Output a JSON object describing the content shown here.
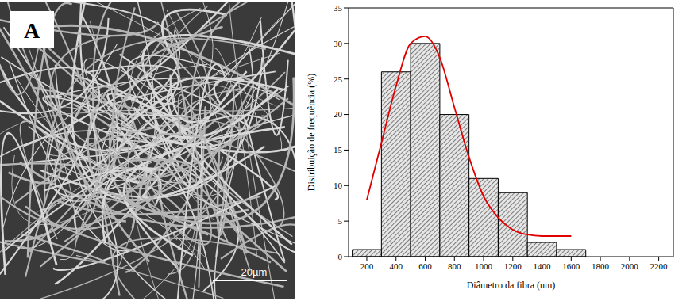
{
  "image": {
    "label": "A",
    "scale_bar": "20µm"
  },
  "chart_data": {
    "type": "histogram",
    "xlabel": "Diâmetro da fibra (nm)",
    "ylabel": "Distribuição de frequência (%)",
    "bins": [
      100,
      300,
      500,
      700,
      900,
      1100,
      1300,
      1500,
      1700
    ],
    "counts": [
      1,
      26,
      30,
      20,
      11,
      9,
      2,
      1
    ],
    "color": "#333333",
    "series": [
      {
        "type": "line",
        "color": "#e00000",
        "x": [
          200,
          300,
          400,
          500,
          600,
          700,
          800,
          900,
          1000,
          1100,
          1200,
          1300,
          1400,
          1500,
          1600
        ],
        "values": [
          8,
          16,
          24,
          30,
          31,
          28,
          21,
          14,
          8.5,
          5.5,
          3.8,
          3.1,
          2.9,
          2.9,
          2.9
        ]
      }
    ],
    "xlim": [
      75,
      2300
    ],
    "ylim": [
      0,
      35
    ],
    "xticks": [
      200,
      400,
      600,
      800,
      1000,
      1200,
      1400,
      1600,
      1800,
      2000,
      2200
    ],
    "yticks": [
      0,
      5,
      10,
      15,
      20,
      25,
      30,
      35
    ],
    "grid": false
  }
}
